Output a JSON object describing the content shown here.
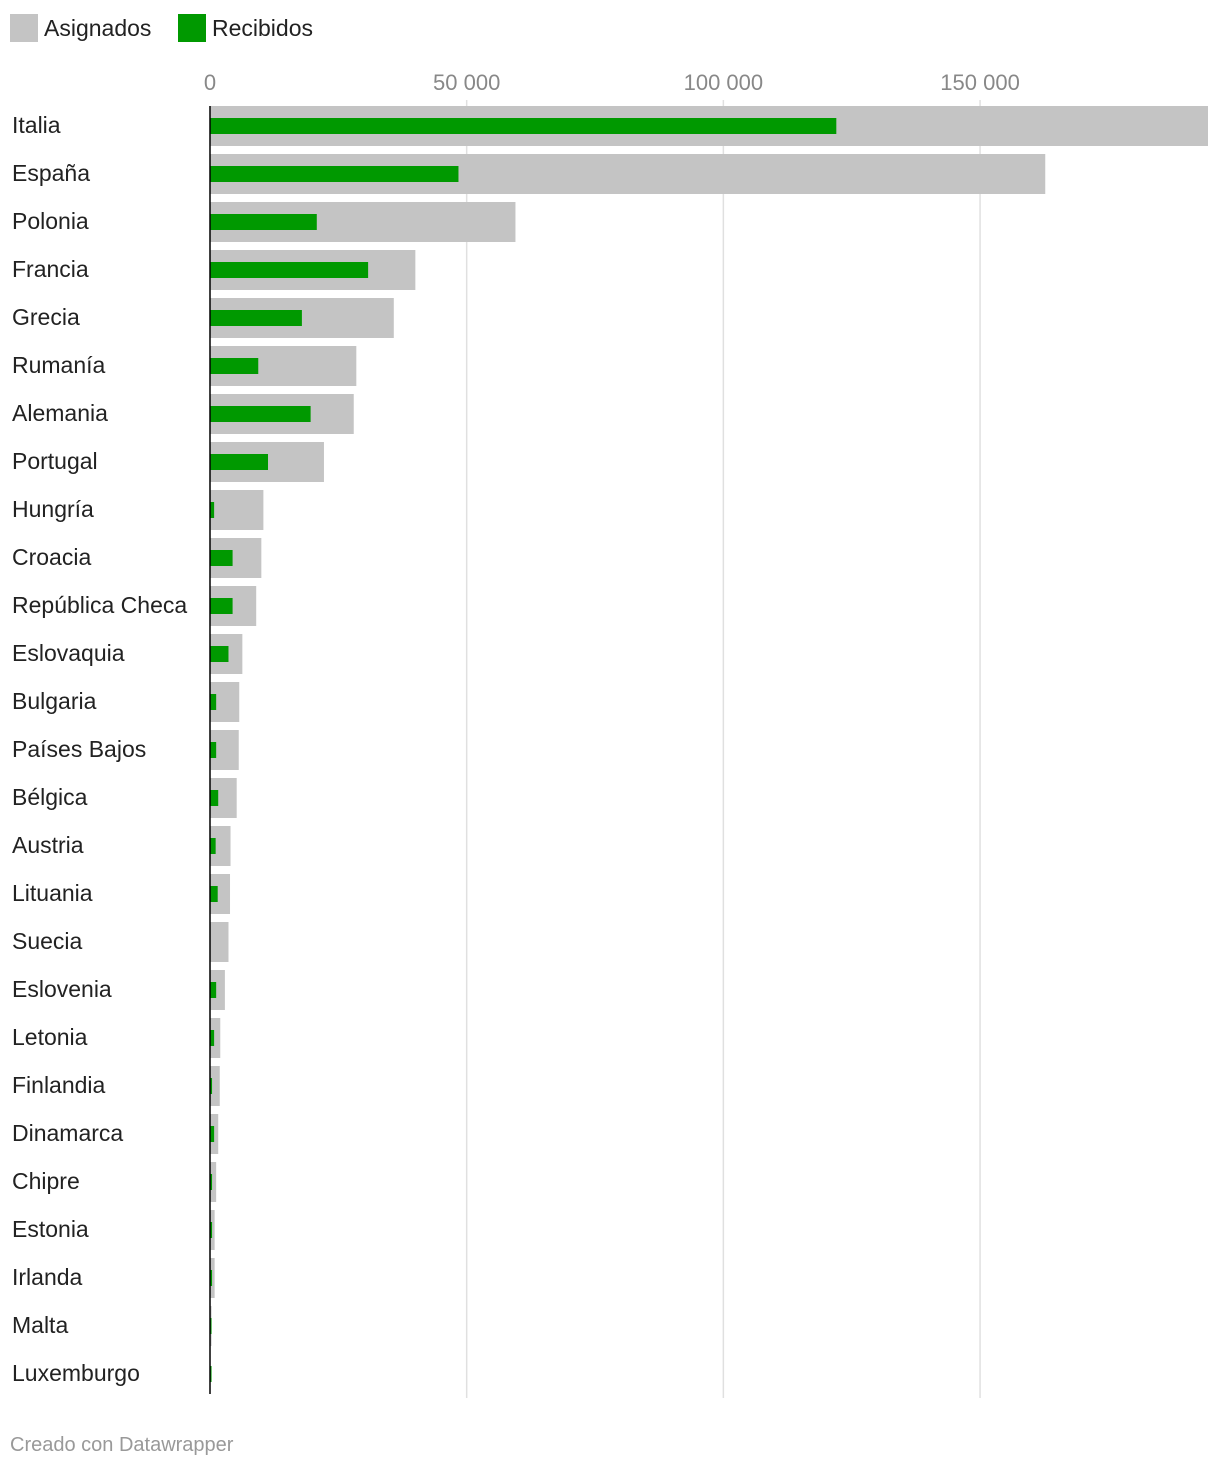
{
  "chart_data": {
    "type": "bar",
    "orientation": "horizontal",
    "categories": [
      "Italia",
      "España",
      "Polonia",
      "Francia",
      "Grecia",
      "Rumanía",
      "Alemania",
      "Portugal",
      "Hungría",
      "Croacia",
      "República Checa",
      "Eslovaquia",
      "Bulgaria",
      "Países Bajos",
      "Bélgica",
      "Austria",
      "Lituania",
      "Suecia",
      "Eslovenia",
      "Letonia",
      "Finlandia",
      "Dinamarca",
      "Chipre",
      "Estonia",
      "Irlanda",
      "Malta",
      "Luxemburgo"
    ],
    "series": [
      {
        "name": "Asignados",
        "color": "#c4c4c4",
        "values": [
          194400,
          162700,
          59500,
          40000,
          35800,
          28500,
          28000,
          22200,
          10400,
          10000,
          9000,
          6300,
          5700,
          5600,
          5200,
          4000,
          3900,
          3600,
          2900,
          2000,
          1900,
          1600,
          1200,
          900,
          900,
          300,
          100
        ]
      },
      {
        "name": "Recibidos",
        "color": "#009900",
        "values": [
          122000,
          48400,
          20800,
          30800,
          17900,
          9400,
          19600,
          11300,
          800,
          4400,
          4400,
          3600,
          1200,
          1200,
          1600,
          1100,
          1500,
          0,
          1200,
          800,
          400,
          800,
          400,
          400,
          400,
          300,
          300
        ]
      }
    ],
    "xlim": [
      0,
      194400
    ],
    "xticks": [
      0,
      50000,
      100000,
      150000
    ],
    "xtick_labels": [
      "0",
      "50 000",
      "100 000",
      "150 000"
    ],
    "grid": true,
    "legend_position": "top-left"
  },
  "footer": {
    "credit": "Creado con Datawrapper"
  }
}
